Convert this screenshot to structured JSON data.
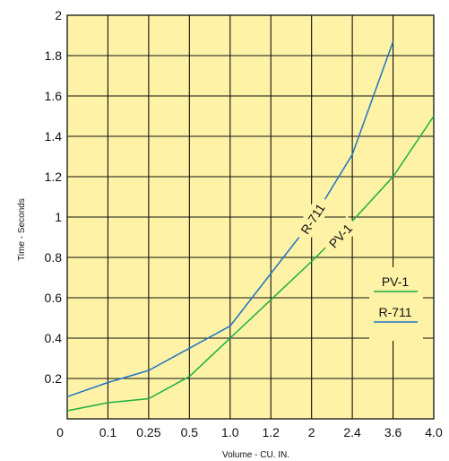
{
  "chart_data": {
    "type": "line",
    "xlabel": "Volume - CU. IN.",
    "ylabel": "Time - Seconds",
    "x": [
      "0",
      "0.1",
      "0.25",
      "0.5",
      "1.0",
      "1.2",
      "2",
      "2.4",
      "3.6",
      "4.0"
    ],
    "ylim": [
      0,
      2
    ],
    "yticks": [
      "0.2",
      "0.4",
      "0.6",
      "0.8",
      "1",
      "1.2",
      "1.4",
      "1.6",
      "1.8",
      "2"
    ],
    "grid": true,
    "background_color": "#fdf2a6",
    "grid_color": "#111111",
    "series": [
      {
        "name": "R-711",
        "color": "#1f74c4",
        "values": [
          0.11,
          0.18,
          0.24,
          0.35,
          0.46,
          0.72,
          0.98,
          1.31,
          1.87,
          null
        ],
        "inline_label": "R-711"
      },
      {
        "name": "PV-1",
        "color": "#1aaf3f",
        "values": [
          0.04,
          0.08,
          0.1,
          0.21,
          0.4,
          0.59,
          0.78,
          0.98,
          1.2,
          1.5
        ],
        "inline_label": "PV-1"
      }
    ],
    "legend": {
      "placement": "bottom-right",
      "entries": [
        "PV-1",
        "R-711"
      ]
    }
  }
}
